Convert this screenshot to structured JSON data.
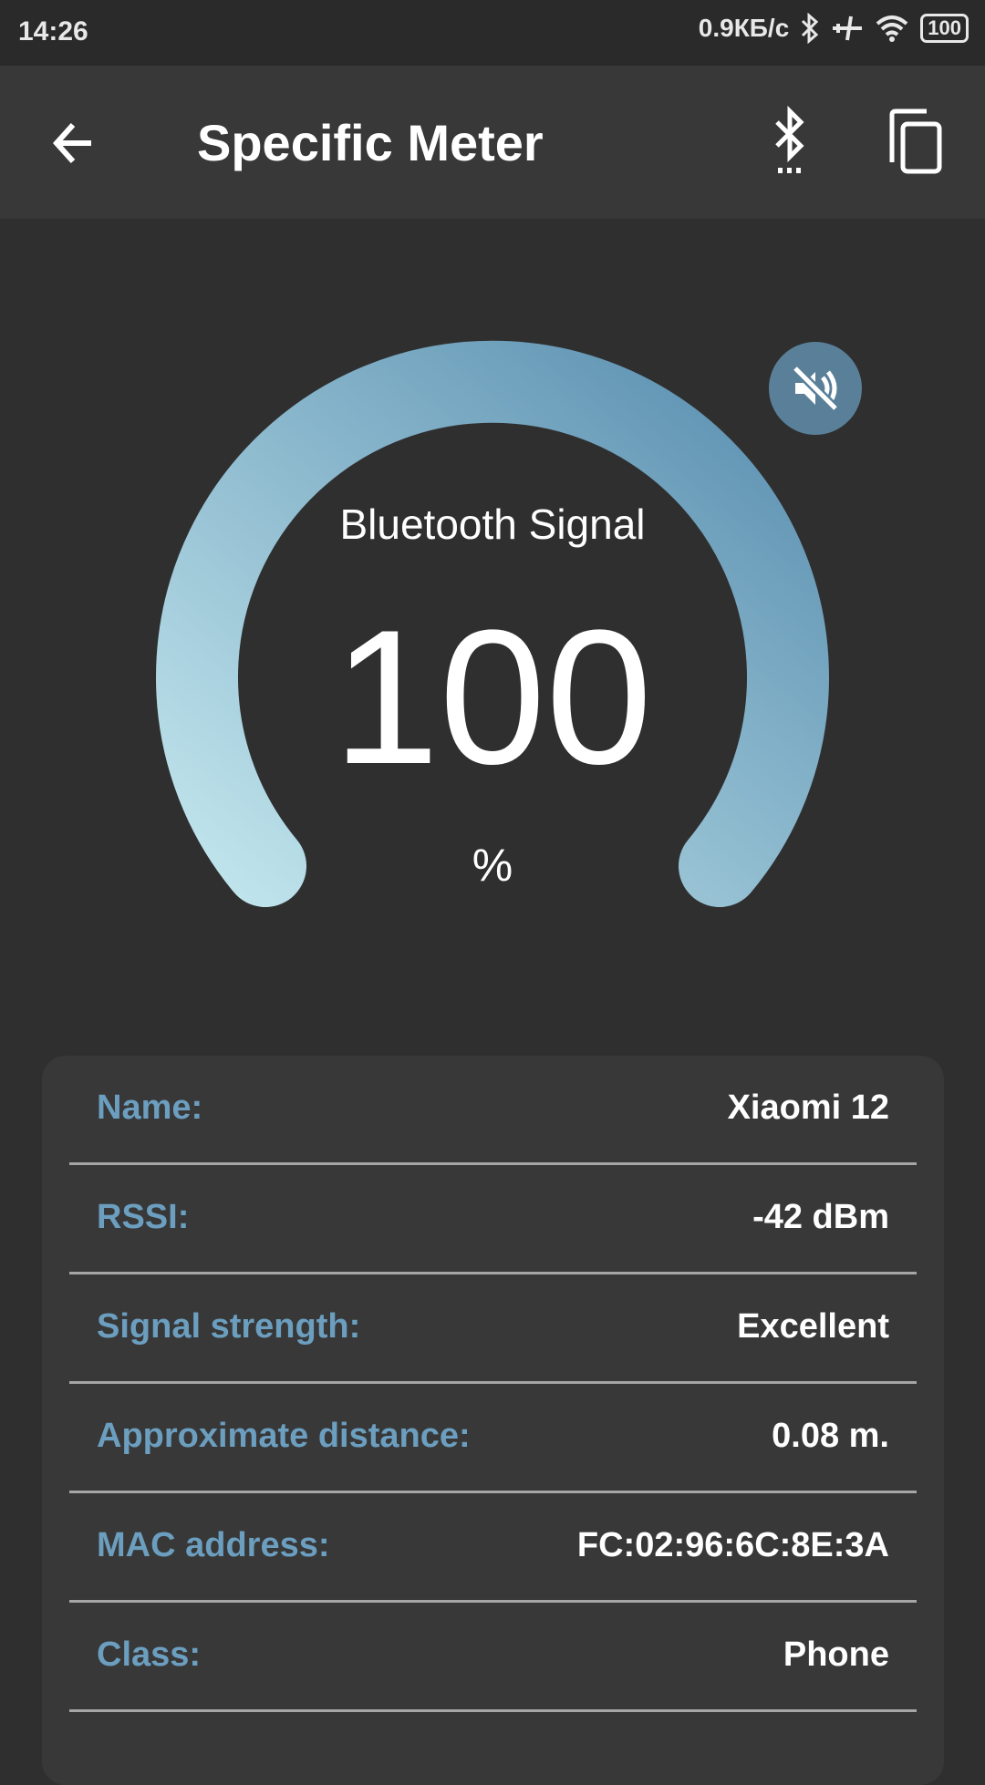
{
  "status_bar": {
    "time": "14:26",
    "net_speed": "0.9КБ/с",
    "battery": "100",
    "icons": [
      "bluetooth-icon",
      "airplane-icon",
      "wifi-icon",
      "battery-icon"
    ]
  },
  "app_bar": {
    "title": "Specific Meter",
    "icons": [
      "back-arrow-icon",
      "bluetooth-scan-icon",
      "copy-icon"
    ]
  },
  "gauge": {
    "label": "Bluetooth Signal",
    "value": "100",
    "unit": "%",
    "fill_percent": 100,
    "gradient_start": "#c0e4ec",
    "gradient_end": "#5a8fb0",
    "mute_icon": "volume-off-icon"
  },
  "details": [
    {
      "label": "Name:",
      "value": "Xiaomi 12"
    },
    {
      "label": "RSSI:",
      "value": "-42 dBm"
    },
    {
      "label": "Signal strength:",
      "value": "Excellent"
    },
    {
      "label": "Approximate distance:",
      "value": "0.08 m."
    },
    {
      "label": "MAC address:",
      "value": "FC:02:96:6C:8E:3A"
    },
    {
      "label": "Class:",
      "value": "Phone"
    }
  ],
  "colors": {
    "label_accent": "#6b9ebf",
    "background": "#2f2f2f",
    "card": "#383838"
  }
}
